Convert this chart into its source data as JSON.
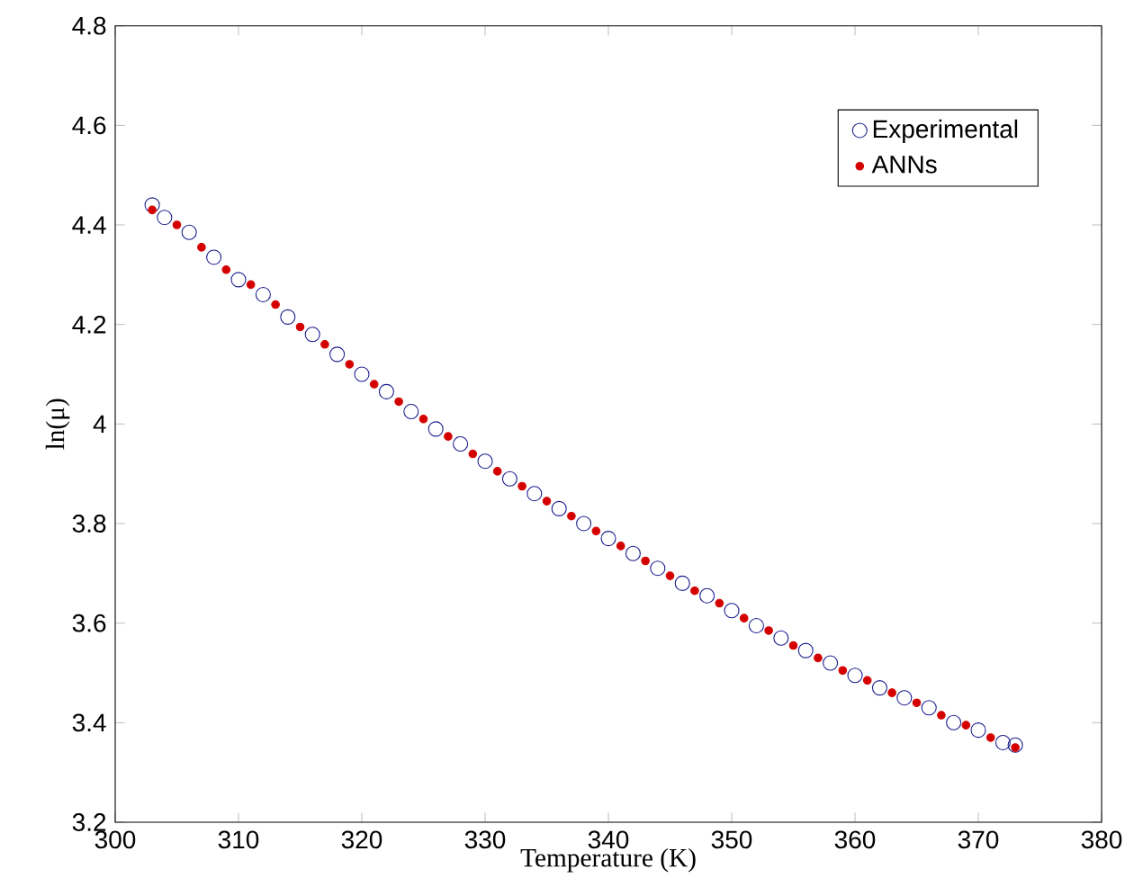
{
  "chart_data": {
    "type": "scatter",
    "xlabel": "Temperature (K)",
    "ylabel": "ln(μ)",
    "xlim": [
      300,
      380
    ],
    "xticks": [
      300,
      310,
      320,
      330,
      340,
      350,
      360,
      370,
      380
    ],
    "ylim": [
      3.2,
      4.8
    ],
    "yticks": [
      3.2,
      3.4,
      3.6,
      3.8,
      4,
      4.2,
      4.4,
      4.6,
      4.8
    ],
    "grid": false,
    "legend": "top right",
    "series": [
      {
        "name": "Experimental",
        "color": "#1a1a8c",
        "marker": "circle",
        "x": [
          303,
          304,
          306,
          308,
          310,
          312,
          314,
          316,
          318,
          320,
          322,
          324,
          326,
          328,
          330,
          332,
          334,
          336,
          338,
          340,
          342,
          344,
          346,
          348,
          350,
          352,
          354,
          356,
          358,
          360,
          362,
          364,
          366,
          368,
          370,
          372,
          373
        ],
        "values": [
          4.44,
          4.415,
          4.385,
          4.335,
          4.29,
          4.26,
          4.215,
          4.18,
          4.14,
          4.1,
          4.065,
          4.025,
          3.99,
          3.96,
          3.925,
          3.89,
          3.86,
          3.83,
          3.8,
          3.77,
          3.74,
          3.71,
          3.68,
          3.655,
          3.625,
          3.595,
          3.57,
          3.545,
          3.52,
          3.495,
          3.47,
          3.45,
          3.43,
          3.4,
          3.385,
          3.36,
          3.355
        ]
      },
      {
        "name": "ANNs",
        "color": "#d40000",
        "marker": "dot",
        "x": [
          303,
          305,
          307,
          309,
          311,
          313,
          315,
          317,
          319,
          321,
          323,
          325,
          327,
          329,
          331,
          333,
          335,
          337,
          339,
          341,
          343,
          345,
          347,
          349,
          351,
          353,
          355,
          357,
          359,
          361,
          363,
          365,
          367,
          369,
          371,
          373
        ],
        "values": [
          4.43,
          4.4,
          4.355,
          4.31,
          4.28,
          4.24,
          4.195,
          4.16,
          4.12,
          4.08,
          4.045,
          4.01,
          3.975,
          3.94,
          3.905,
          3.875,
          3.845,
          3.815,
          3.785,
          3.755,
          3.725,
          3.695,
          3.665,
          3.64,
          3.61,
          3.585,
          3.555,
          3.53,
          3.505,
          3.485,
          3.46,
          3.44,
          3.415,
          3.395,
          3.37,
          3.35
        ]
      }
    ]
  }
}
